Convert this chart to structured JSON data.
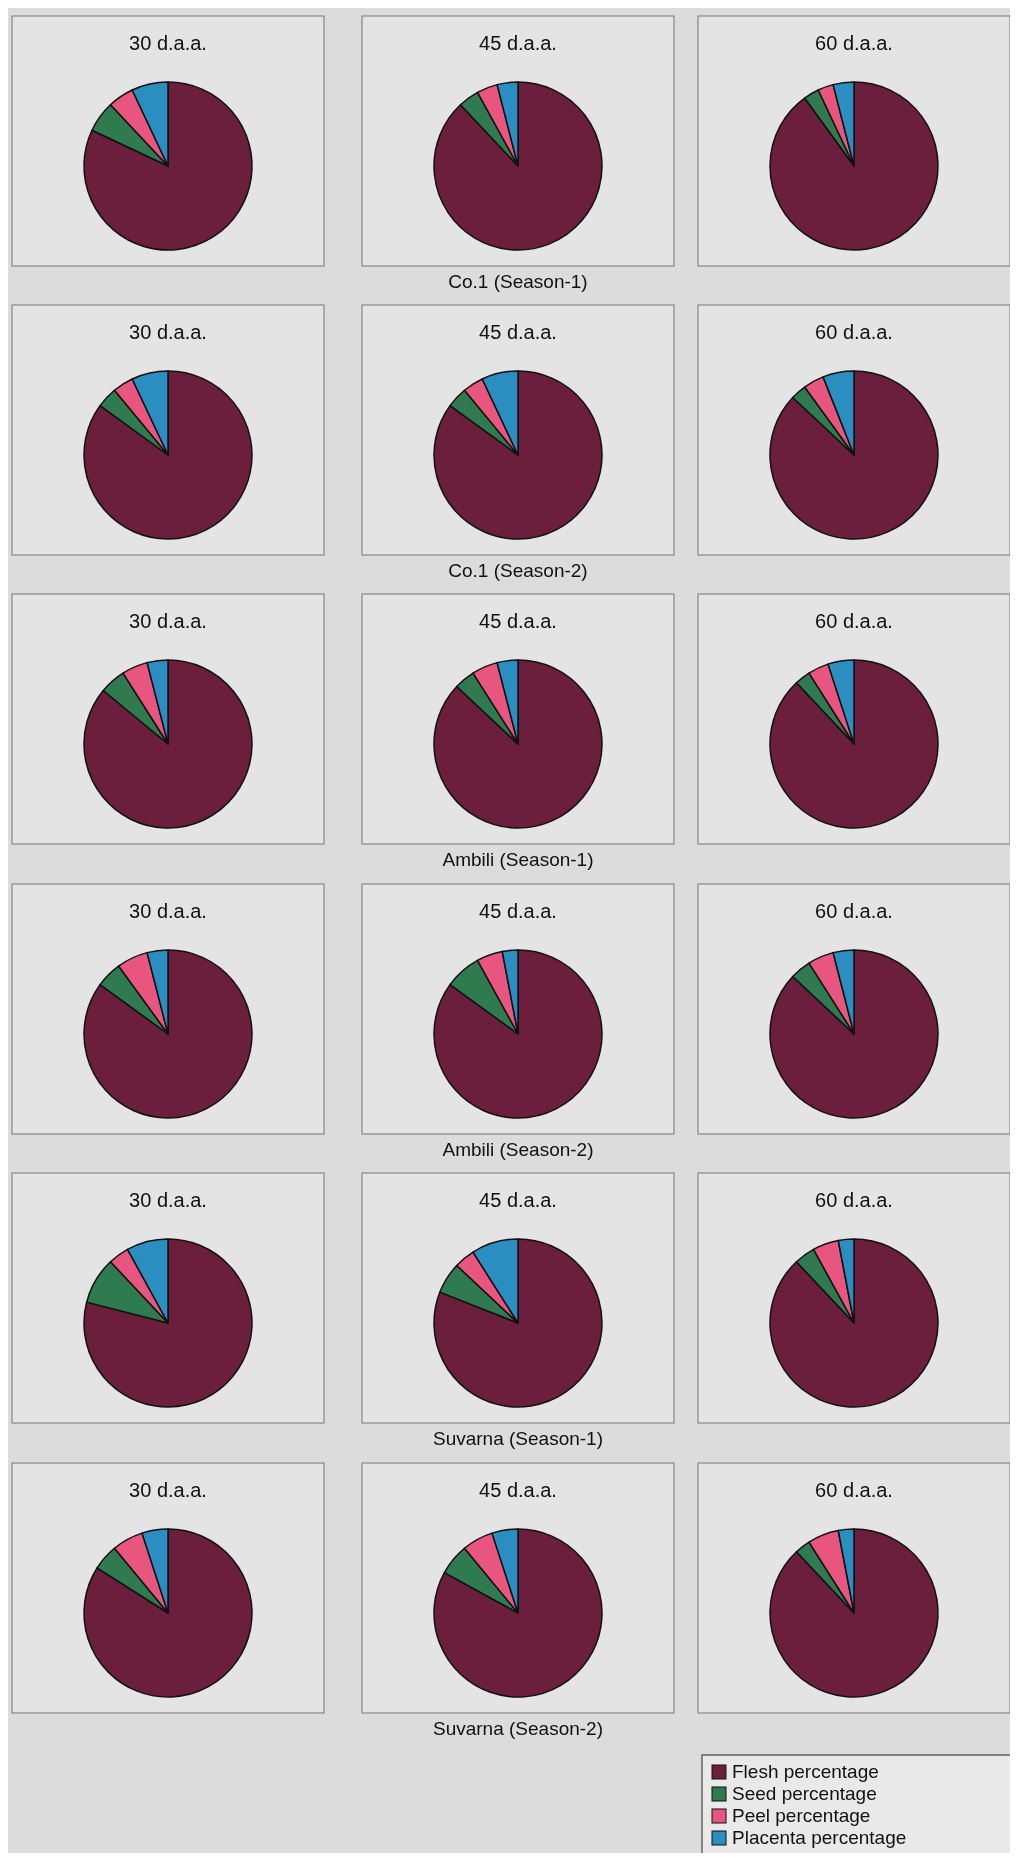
{
  "chart_data": [
    {
      "type": "pie",
      "title": "30 d.a.a.",
      "categories": [
        null,
        null,
        null,
        null
      ],
      "values": [
        82,
        6,
        5,
        7
      ],
      "colors": [
        "#6b1f3c",
        "#2f7a4e",
        "#e8567f",
        "#2a8fc0"
      ]
    },
    {
      "type": "pie",
      "title": "45 d.a.a.",
      "categories": [
        null,
        null,
        null,
        null
      ],
      "values": [
        88,
        4,
        4,
        4
      ],
      "colors": [
        "#6b1f3c",
        "#2f7a4e",
        "#e8567f",
        "#2a8fc0"
      ],
      "annotations": [
        "Co.1 (Season-1)"
      ]
    },
    {
      "type": "pie",
      "title": "60 d.a.a.",
      "categories": [
        null,
        null,
        null,
        null
      ],
      "values": [
        90,
        3,
        3,
        4
      ],
      "colors": [
        "#6b1f3c",
        "#2f7a4e",
        "#e8567f",
        "#2a8fc0"
      ]
    },
    {
      "type": "pie",
      "title": "30 d.a.a.",
      "categories": [
        null,
        null,
        null,
        null
      ],
      "values": [
        85,
        4,
        4,
        7
      ],
      "colors": [
        "#6b1f3c",
        "#2f7a4e",
        "#e8567f",
        "#2a8fc0"
      ]
    },
    {
      "type": "pie",
      "title": "45 d.a.a.",
      "categories": [
        null,
        null,
        null,
        null
      ],
      "values": [
        85,
        4,
        4,
        7
      ],
      "colors": [
        "#6b1f3c",
        "#2f7a4e",
        "#e8567f",
        "#2a8fc0"
      ],
      "annotations": [
        "Co.1 (Season-2)"
      ]
    },
    {
      "type": "pie",
      "title": "60 d.a.a.",
      "categories": [
        null,
        null,
        null,
        null
      ],
      "values": [
        87,
        3,
        4,
        6
      ],
      "colors": [
        "#6b1f3c",
        "#2f7a4e",
        "#e8567f",
        "#2a8fc0"
      ]
    },
    {
      "type": "pie",
      "title": "30 d.a.a.",
      "categories": [
        null,
        null,
        null,
        null
      ],
      "values": [
        86,
        5,
        5,
        4
      ],
      "colors": [
        "#6b1f3c",
        "#2f7a4e",
        "#e8567f",
        "#2a8fc0"
      ]
    },
    {
      "type": "pie",
      "title": "45 d.a.a.",
      "categories": [
        null,
        null,
        null,
        null
      ],
      "values": [
        87,
        4,
        5,
        4
      ],
      "colors": [
        "#6b1f3c",
        "#2f7a4e",
        "#e8567f",
        "#2a8fc0"
      ],
      "annotations": [
        "Ambili (Season-1)"
      ]
    },
    {
      "type": "pie",
      "title": "60 d.a.a.",
      "categories": [
        null,
        null,
        null,
        null
      ],
      "values": [
        88,
        3,
        4,
        5
      ],
      "colors": [
        "#6b1f3c",
        "#2f7a4e",
        "#e8567f",
        "#2a8fc0"
      ]
    },
    {
      "type": "pie",
      "title": "30 d.a.a.",
      "categories": [
        null,
        null,
        null,
        null
      ],
      "values": [
        85,
        5,
        6,
        4
      ],
      "colors": [
        "#6b1f3c",
        "#2f7a4e",
        "#e8567f",
        "#2a8fc0"
      ]
    },
    {
      "type": "pie",
      "title": "45 d.a.a.",
      "categories": [
        null,
        null,
        null,
        null
      ],
      "values": [
        85,
        7,
        5,
        3
      ],
      "colors": [
        "#6b1f3c",
        "#2f7a4e",
        "#e8567f",
        "#2a8fc0"
      ],
      "annotations": [
        "Ambili (Season-2)"
      ]
    },
    {
      "type": "pie",
      "title": "60 d.a.a.",
      "categories": [
        null,
        null,
        null,
        null
      ],
      "values": [
        87,
        4,
        5,
        4
      ],
      "colors": [
        "#6b1f3c",
        "#2f7a4e",
        "#e8567f",
        "#2a8fc0"
      ]
    },
    {
      "type": "pie",
      "title": "30 d.a.a.",
      "categories": [
        null,
        null,
        null,
        null
      ],
      "values": [
        79,
        9,
        4,
        8
      ],
      "colors": [
        "#6b1f3c",
        "#2f7a4e",
        "#e8567f",
        "#2a8fc0"
      ]
    },
    {
      "type": "pie",
      "title": "45 d.a.a.",
      "categories": [
        null,
        null,
        null,
        null
      ],
      "values": [
        81,
        6,
        4,
        9
      ],
      "colors": [
        "#6b1f3c",
        "#2f7a4e",
        "#e8567f",
        "#2a8fc0"
      ],
      "annotations": [
        "Suvarna (Season-1)"
      ]
    },
    {
      "type": "pie",
      "title": "60 d.a.a.",
      "categories": [
        null,
        null,
        null,
        null
      ],
      "values": [
        88,
        4,
        5,
        3
      ],
      "colors": [
        "#6b1f3c",
        "#2f7a4e",
        "#e8567f",
        "#2a8fc0"
      ]
    },
    {
      "type": "pie",
      "title": "30 d.a.a.",
      "categories": [
        null,
        null,
        null,
        null
      ],
      "values": [
        84,
        5,
        6,
        5
      ],
      "colors": [
        "#6b1f3c",
        "#2f7a4e",
        "#e8567f",
        "#2a8fc0"
      ]
    },
    {
      "type": "pie",
      "title": "45 d.a.a.",
      "categories": [
        null,
        null,
        null,
        null
      ],
      "values": [
        83,
        6,
        6,
        5
      ],
      "colors": [
        "#6b1f3c",
        "#2f7a4e",
        "#e8567f",
        "#2a8fc0"
      ],
      "annotations": [
        "Suvarna (Season-2)"
      ]
    },
    {
      "type": "pie",
      "title": "60 d.a.a.",
      "categories": [
        "Flesh percentage",
        "Seed percentage",
        "Peel percentage",
        "Placenta percentage"
      ],
      "values": [
        88,
        3,
        6,
        3
      ],
      "colors": [
        "#6b1f3c",
        "#2f7a4e",
        "#e8567f",
        "#2a8fc0"
      ],
      "legend": "bottom"
    }
  ]
}
